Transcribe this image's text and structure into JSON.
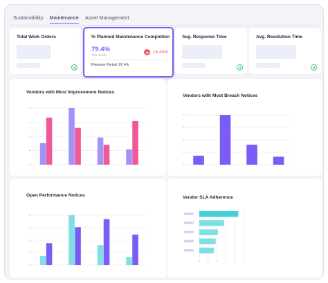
{
  "tabs": [
    {
      "label": "Sustainability",
      "active": false
    },
    {
      "label": "Maintenance",
      "active": true
    },
    {
      "label": "Asset Management",
      "active": false
    }
  ],
  "kpis": {
    "total_work_orders": {
      "title": "Total Work Orders",
      "trend_icon": "arrow-up-circle-icon"
    },
    "planned_maintenance": {
      "title": "% Planned Maintenance Completion",
      "value": "79.4%",
      "value_sub": "This month",
      "delta": "18.44%",
      "delta_icon": "arrow-down-circle-icon",
      "previous": "Previous Period: 97.4%"
    },
    "avg_response_time": {
      "title": "Avg. Response Time",
      "trend_icon": "arrow-up-circle-icon"
    },
    "avg_resolution_time": {
      "title": "Avg. Resolution Time",
      "trend_icon": "arrow-up-circle-icon"
    }
  },
  "colors": {
    "accent": "#7c5cf6",
    "purple_light": "#a393f7",
    "pink": "#f0589a",
    "cyan": "#7ee0e3",
    "teal": "#46cfd8",
    "up": "#3bbf7a",
    "down": "#f25b6b"
  },
  "chart_data": [
    {
      "type": "bar",
      "title": "Vendors with Most Improvement Notices",
      "categories": [
        "",
        "",
        "",
        ""
      ],
      "ylim": [
        0,
        100
      ],
      "grid": true,
      "series": [
        {
          "values": [
            38,
            100,
            48,
            27
          ]
        },
        {
          "values": [
            83,
            65,
            35,
            77
          ]
        }
      ]
    },
    {
      "type": "bar",
      "title": "Vendors with Most Breach Notices",
      "categories": [
        "",
        "",
        "",
        ""
      ],
      "ylim": [
        0,
        100
      ],
      "grid": true,
      "series": [
        {
          "values": [
            18,
            100,
            40,
            16
          ]
        }
      ]
    },
    {
      "type": "bar",
      "title": "Open Performance Notices",
      "categories": [
        "",
        "",
        "",
        ""
      ],
      "ylim": [
        0,
        100
      ],
      "grid": true,
      "series": [
        {
          "values": [
            18,
            100,
            40,
            16
          ]
        },
        {
          "values": [
            44,
            76,
            92,
            61
          ]
        }
      ]
    },
    {
      "type": "bar",
      "orientation": "horizontal",
      "title": "Vendor SLA Adherence",
      "categories": [
        "",
        "",
        "",
        "",
        ""
      ],
      "xlim": [
        0,
        100
      ],
      "grid": true,
      "series": [
        {
          "values": [
            88,
            56,
            42,
            37,
            33
          ]
        }
      ]
    }
  ]
}
